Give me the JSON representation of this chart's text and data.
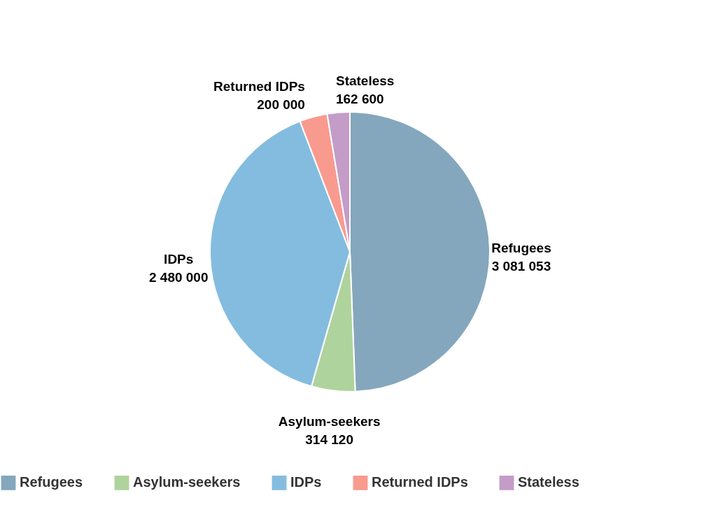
{
  "chart_data": {
    "type": "pie",
    "categories": [
      "Refugees",
      "Asylum-seekers",
      "IDPs",
      "Returned IDPs",
      "Stateless"
    ],
    "values": [
      3081053,
      314120,
      2480000,
      200000,
      162600
    ],
    "colors": [
      "#84a7bd",
      "#afd39c",
      "#84bcdf",
      "#f99a8f",
      "#c49cc8"
    ],
    "data_labels": true,
    "legend": "bottom"
  }
}
